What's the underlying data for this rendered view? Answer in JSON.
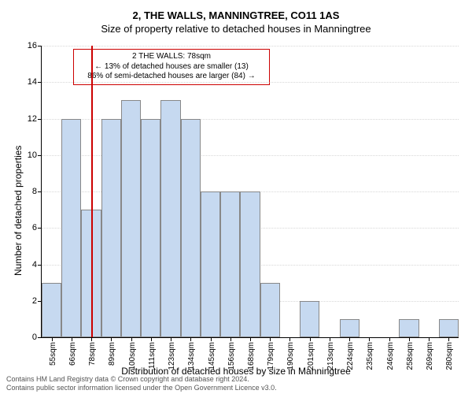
{
  "chart": {
    "type": "histogram",
    "title_main": "2, THE WALLS, MANNINGTREE, CO11 1AS",
    "title_sub": "Size of property relative to detached houses in Manningtree",
    "title_fontsize": 13,
    "ylabel": "Number of detached properties",
    "xlabel": "Distribution of detached houses by size in Manningtree",
    "label_fontsize": 12,
    "ylim": [
      0,
      16
    ],
    "ytick_step": 2,
    "background_color": "#ffffff",
    "grid_color": "#b0b0b0",
    "bar_color": "#c6d9f0",
    "bar_border_color": "#888888",
    "reference_line_color": "#cc0000",
    "reference_value_sqm": 78,
    "x_tick_labels": [
      "55sqm",
      "66sqm",
      "78sqm",
      "89sqm",
      "100sqm",
      "111sqm",
      "123sqm",
      "134sqm",
      "145sqm",
      "156sqm",
      "168sqm",
      "179sqm",
      "190sqm",
      "201sqm",
      "213sqm",
      "224sqm",
      "235sqm",
      "246sqm",
      "258sqm",
      "269sqm",
      "280sqm"
    ],
    "values": [
      3,
      12,
      7,
      12,
      13,
      12,
      13,
      12,
      8,
      8,
      8,
      3,
      0,
      2,
      0,
      1,
      0,
      0,
      1,
      0,
      1
    ],
    "annotation": {
      "line1": "2 THE WALLS: 78sqm",
      "line2": "← 13% of detached houses are smaller (13)",
      "line3": "86% of semi-detached houses are larger (84) →"
    },
    "footer_line1": "Contains HM Land Registry data © Crown copyright and database right 2024.",
    "footer_line2": "Contains public sector information licensed under the Open Government Licence v3.0."
  }
}
